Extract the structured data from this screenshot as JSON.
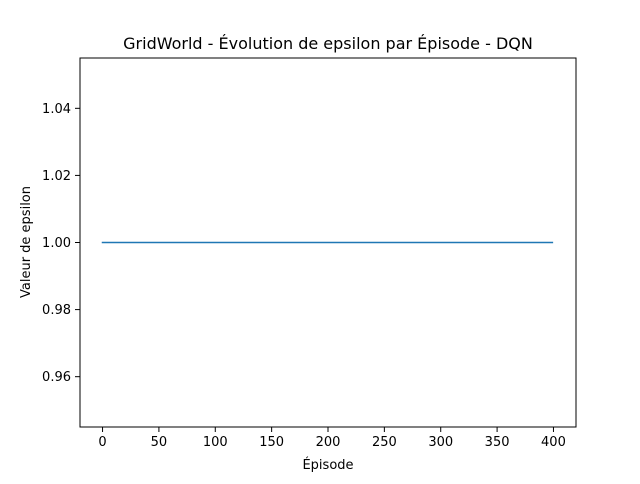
{
  "chart_data": {
    "type": "line",
    "title": "GridWorld - Évolution de epsilon par Épisode - DQN",
    "xlabel": "Épisode",
    "ylabel": "Valeur de epsilon",
    "xlim": [
      -20,
      420
    ],
    "ylim": [
      0.945,
      1.055
    ],
    "xticks": [
      0,
      50,
      100,
      150,
      200,
      250,
      300,
      350,
      400
    ],
    "yticks": [
      0.96,
      0.98,
      1.0,
      1.02,
      1.04
    ],
    "xtick_labels": [
      "0",
      "50",
      "100",
      "150",
      "200",
      "250",
      "300",
      "350",
      "400"
    ],
    "ytick_labels": [
      "0.96",
      "0.98",
      "1.00",
      "1.02",
      "1.04"
    ],
    "grid": false,
    "series": [
      {
        "color": "#1f77b4",
        "x": [
          0,
          399
        ],
        "y": [
          1.0,
          1.0
        ]
      }
    ]
  }
}
